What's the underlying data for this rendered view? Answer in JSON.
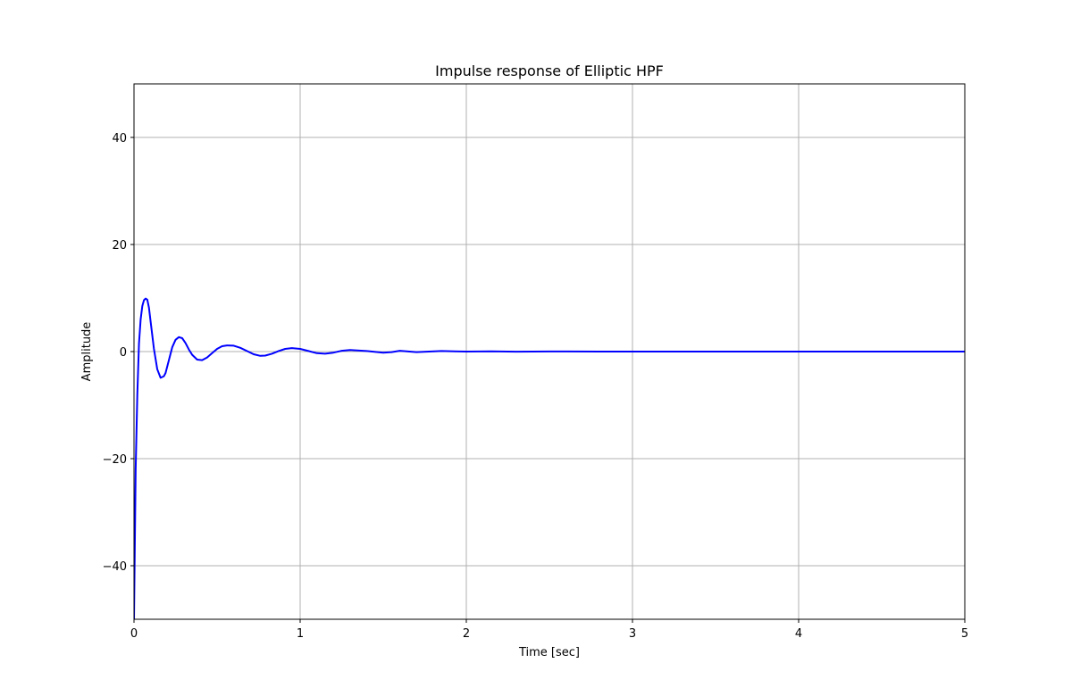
{
  "chart_data": {
    "type": "line",
    "title": "Impulse response of Elliptic HPF",
    "xlabel": "Time  [sec]",
    "ylabel": "Amplitude",
    "xlim": [
      0,
      5
    ],
    "ylim": [
      -50,
      50
    ],
    "grid": true,
    "x_ticks": [
      0,
      1,
      2,
      3,
      4,
      5
    ],
    "x_tick_labels": [
      "0",
      "1",
      "2",
      "3",
      "4",
      "5"
    ],
    "y_ticks": [
      -40,
      -20,
      0,
      20,
      40
    ],
    "y_tick_labels": [
      "−40",
      "−20",
      "0",
      "20",
      "40"
    ],
    "series": [
      {
        "color": "#0000ff",
        "x": [
          0,
          0.005,
          0.01,
          0.02,
          0.03,
          0.04,
          0.05,
          0.06,
          0.07,
          0.08,
          0.09,
          0.1,
          0.12,
          0.14,
          0.16,
          0.18,
          0.19,
          0.21,
          0.23,
          0.25,
          0.27,
          0.29,
          0.31,
          0.33,
          0.35,
          0.38,
          0.41,
          0.44,
          0.47,
          0.5,
          0.53,
          0.56,
          0.6,
          0.64,
          0.68,
          0.72,
          0.76,
          0.79,
          0.83,
          0.87,
          0.91,
          0.95,
          1.0,
          1.05,
          1.1,
          1.15,
          1.2,
          1.25,
          1.3,
          1.4,
          1.5,
          1.55,
          1.6,
          1.7,
          1.85,
          2.0,
          2.15,
          2.3,
          2.5,
          2.8,
          3.2,
          3.6,
          4.0,
          4.5,
          5.0
        ],
        "y": [
          -50,
          -36,
          -22,
          -8,
          1.5,
          6.0,
          8.5,
          9.6,
          9.9,
          9.7,
          8.2,
          5.6,
          0.5,
          -3.3,
          -4.9,
          -4.6,
          -4.0,
          -1.6,
          0.8,
          2.2,
          2.7,
          2.5,
          1.6,
          0.4,
          -0.6,
          -1.5,
          -1.6,
          -1.1,
          -0.3,
          0.5,
          1.0,
          1.15,
          1.1,
          0.7,
          0.1,
          -0.5,
          -0.8,
          -0.75,
          -0.4,
          0.1,
          0.5,
          0.65,
          0.5,
          0.1,
          -0.3,
          -0.4,
          -0.2,
          0.15,
          0.3,
          0.1,
          -0.2,
          -0.1,
          0.15,
          -0.1,
          0.1,
          0,
          0.05,
          -0.03,
          0.02,
          0,
          0,
          0,
          0,
          0,
          0
        ]
      }
    ]
  }
}
